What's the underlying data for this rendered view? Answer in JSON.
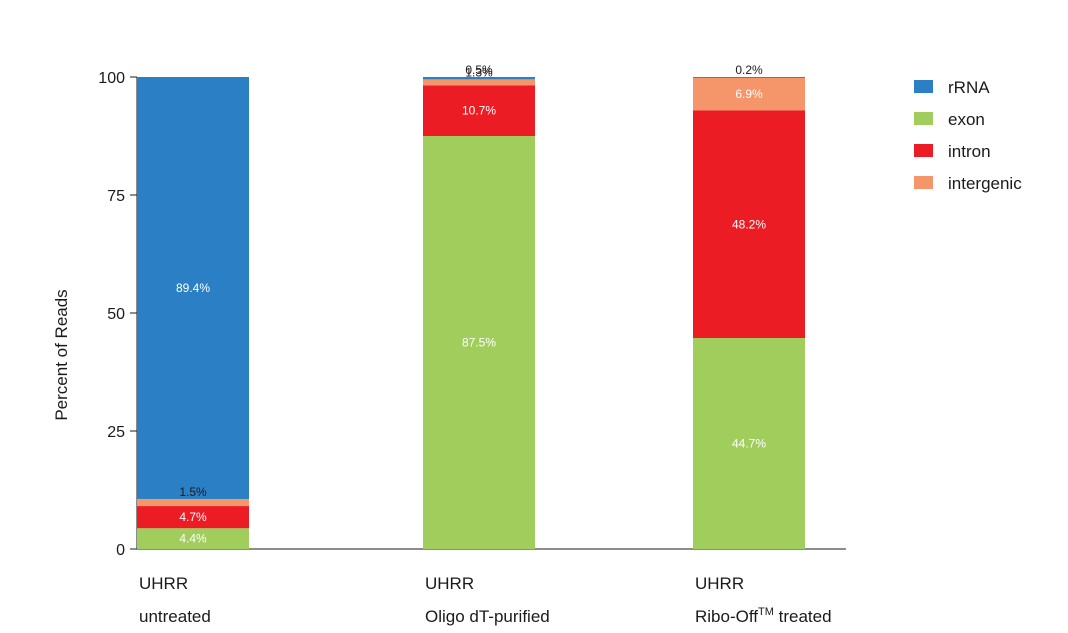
{
  "chart_data": {
    "type": "bar",
    "stacked": true,
    "ylabel": "Percent of Reads",
    "ylim": [
      0,
      100
    ],
    "yticks": [
      0,
      25,
      50,
      75,
      100
    ],
    "grid": false,
    "legend_position": "top-right",
    "categories": [
      {
        "line1": "UHRR",
        "line2": "untreated",
        "superscript": "",
        "line2_suffix": ""
      },
      {
        "line1": "UHRR",
        "line2": "Oligo dT-purified",
        "superscript": "",
        "line2_suffix": ""
      },
      {
        "line1": "UHRR",
        "line2": "Ribo-Off",
        "superscript": "TM",
        "line2_suffix": " treated"
      }
    ],
    "series": [
      {
        "name": "exon",
        "color": "#a1cd5d",
        "values": [
          4.4,
          87.5,
          44.7
        ],
        "labels": [
          "4.4%",
          "87.5%",
          "44.7%"
        ]
      },
      {
        "name": "intron",
        "color": "#ec1c24",
        "values": [
          4.7,
          10.7,
          48.2
        ],
        "labels": [
          "4.7%",
          "10.7%",
          "48.2%"
        ]
      },
      {
        "name": "intergenic",
        "color": "#f4956a",
        "values": [
          1.5,
          1.3,
          6.9
        ],
        "labels": [
          "1.5%",
          "1.3%",
          "6.9%"
        ]
      },
      {
        "name": "rRNA",
        "color": "#2b80c5",
        "values": [
          89.4,
          0.5,
          0.2
        ],
        "labels": [
          "89.4%",
          "0.5%",
          "0.2%"
        ]
      }
    ],
    "legend_order": [
      "rRNA",
      "exon",
      "intron",
      "intergenic"
    ]
  }
}
